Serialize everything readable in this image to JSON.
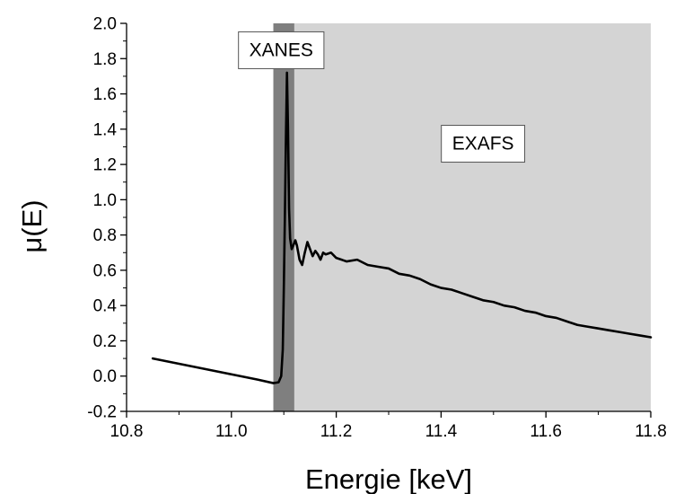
{
  "chart_data": {
    "type": "line",
    "xlabel": "Energie [keV]",
    "ylabel": "μ(E)",
    "xlim": [
      10.8,
      11.8
    ],
    "ylim": [
      -0.2,
      2.0
    ],
    "x_ticks": [
      "10.8",
      "11.0",
      "11.2",
      "11.4",
      "11.6",
      "11.8"
    ],
    "x_tick_values": [
      10.8,
      11.0,
      11.2,
      11.4,
      11.6,
      11.8
    ],
    "y_ticks": [
      "-0.2",
      "0.0",
      "0.2",
      "0.4",
      "0.6",
      "0.8",
      "1.0",
      "1.2",
      "1.4",
      "1.6",
      "1.8",
      "2.0"
    ],
    "y_tick_values": [
      -0.2,
      0.0,
      0.2,
      0.4,
      0.6,
      0.8,
      1.0,
      1.2,
      1.4,
      1.6,
      1.8,
      2.0
    ],
    "grid": false,
    "regions": [
      {
        "label": "XANES",
        "x_range": [
          11.08,
          11.12
        ],
        "color": "#7f7f7f"
      },
      {
        "label": "EXAFS",
        "x_range": [
          11.12,
          11.8
        ],
        "color": "#d4d4d4"
      }
    ],
    "series": [
      {
        "color": "#000000",
        "points": [
          [
            10.85,
            0.1
          ],
          [
            10.9,
            0.07
          ],
          [
            10.95,
            0.04
          ],
          [
            11.0,
            0.01
          ],
          [
            11.05,
            -0.02
          ],
          [
            11.08,
            -0.04
          ],
          [
            11.09,
            -0.035
          ],
          [
            11.095,
            0.0
          ],
          [
            11.098,
            0.15
          ],
          [
            11.1,
            0.5
          ],
          [
            11.102,
            0.9
          ],
          [
            11.104,
            1.35
          ],
          [
            11.106,
            1.72
          ],
          [
            11.108,
            1.4
          ],
          [
            11.11,
            0.95
          ],
          [
            11.112,
            0.78
          ],
          [
            11.115,
            0.72
          ],
          [
            11.118,
            0.74
          ],
          [
            11.122,
            0.77
          ],
          [
            11.125,
            0.74
          ],
          [
            11.13,
            0.66
          ],
          [
            11.135,
            0.63
          ],
          [
            11.14,
            0.7
          ],
          [
            11.145,
            0.76
          ],
          [
            11.15,
            0.72
          ],
          [
            11.155,
            0.68
          ],
          [
            11.16,
            0.71
          ],
          [
            11.165,
            0.69
          ],
          [
            11.17,
            0.66
          ],
          [
            11.175,
            0.7
          ],
          [
            11.18,
            0.69
          ],
          [
            11.19,
            0.7
          ],
          [
            11.2,
            0.67
          ],
          [
            11.22,
            0.65
          ],
          [
            11.24,
            0.66
          ],
          [
            11.26,
            0.63
          ],
          [
            11.28,
            0.62
          ],
          [
            11.3,
            0.61
          ],
          [
            11.32,
            0.58
          ],
          [
            11.34,
            0.57
          ],
          [
            11.36,
            0.55
          ],
          [
            11.38,
            0.52
          ],
          [
            11.4,
            0.5
          ],
          [
            11.42,
            0.49
          ],
          [
            11.44,
            0.47
          ],
          [
            11.46,
            0.45
          ],
          [
            11.48,
            0.43
          ],
          [
            11.5,
            0.42
          ],
          [
            11.52,
            0.4
          ],
          [
            11.54,
            0.39
          ],
          [
            11.56,
            0.37
          ],
          [
            11.58,
            0.36
          ],
          [
            11.6,
            0.34
          ],
          [
            11.62,
            0.33
          ],
          [
            11.64,
            0.31
          ],
          [
            11.66,
            0.29
          ],
          [
            11.68,
            0.28
          ],
          [
            11.7,
            0.27
          ],
          [
            11.72,
            0.26
          ],
          [
            11.74,
            0.25
          ],
          [
            11.76,
            0.24
          ],
          [
            11.78,
            0.23
          ],
          [
            11.8,
            0.22
          ]
        ]
      }
    ]
  }
}
